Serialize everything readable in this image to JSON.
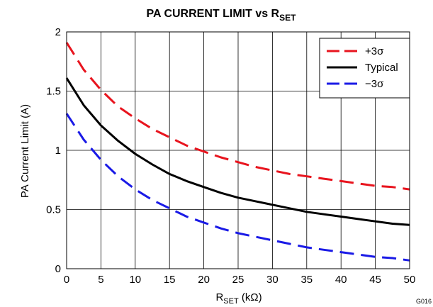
{
  "chart_data": {
    "type": "line",
    "title_main": "PA CURRENT LIMIT vs R",
    "title_sub": "SET",
    "xlabel_main": "R",
    "xlabel_sub": "SET",
    "xlabel_unit": " (kΩ)",
    "ylabel": "PA Current Limit (A)",
    "xlim": [
      0,
      50
    ],
    "ylim": [
      0,
      2
    ],
    "xticks": [
      0,
      5,
      10,
      15,
      20,
      25,
      30,
      35,
      40,
      45,
      50
    ],
    "yticks": [
      0,
      0.5,
      1,
      1.5,
      2
    ],
    "ytick_labels": [
      "0",
      "0.5",
      "1",
      "1.5",
      "2"
    ],
    "grid": true,
    "legend_position": "top-right",
    "figure_code": "G016",
    "x": [
      0,
      2.5,
      5,
      7.5,
      10,
      12.5,
      15,
      17.5,
      20,
      22.5,
      25,
      27.5,
      30,
      32.5,
      35,
      37.5,
      40,
      42.5,
      45,
      47.5,
      50
    ],
    "series": [
      {
        "name": "+3σ",
        "color": "#e8141e",
        "dash": "long-dash",
        "values": [
          1.91,
          1.68,
          1.51,
          1.37,
          1.27,
          1.18,
          1.11,
          1.04,
          0.99,
          0.94,
          0.9,
          0.86,
          0.83,
          0.8,
          0.78,
          0.76,
          0.74,
          0.72,
          0.7,
          0.69,
          0.67
        ]
      },
      {
        "name": "Typical",
        "color": "#000000",
        "dash": "solid",
        "values": [
          1.61,
          1.38,
          1.21,
          1.08,
          0.97,
          0.88,
          0.8,
          0.74,
          0.69,
          0.64,
          0.6,
          0.57,
          0.54,
          0.51,
          0.48,
          0.46,
          0.44,
          0.42,
          0.4,
          0.38,
          0.37
        ]
      },
      {
        "name": "−3σ",
        "color": "#1a1ae6",
        "dash": "long-dash",
        "values": [
          1.31,
          1.09,
          0.92,
          0.78,
          0.67,
          0.58,
          0.51,
          0.44,
          0.39,
          0.34,
          0.3,
          0.27,
          0.24,
          0.21,
          0.18,
          0.16,
          0.14,
          0.12,
          0.1,
          0.09,
          0.07
        ]
      }
    ]
  }
}
